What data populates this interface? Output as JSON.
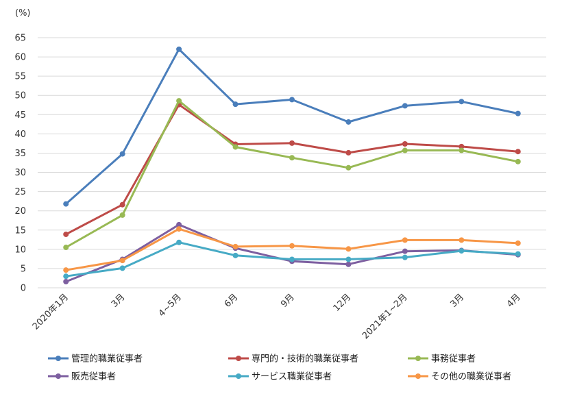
{
  "chart_data": {
    "type": "line",
    "unit_label": "(%)",
    "ylim": [
      0,
      65
    ],
    "ytick_step": 5,
    "grid": "horizontal",
    "legend_position": "bottom",
    "categories": [
      "2020年1月",
      "3月",
      "4~5月",
      "6月",
      "9月",
      "12月",
      "2021年1~2月",
      "3月",
      "4月"
    ],
    "series": [
      {
        "name": "管理的職業従事者",
        "color": "#4a7ebb",
        "values": [
          21.8,
          34.8,
          62.0,
          47.7,
          48.9,
          43.1,
          47.3,
          48.4,
          45.3
        ]
      },
      {
        "name": "専門的・技術的職業従事者",
        "color": "#be4b48",
        "values": [
          13.9,
          21.6,
          47.6,
          37.3,
          37.6,
          35.1,
          37.4,
          36.7,
          35.4
        ]
      },
      {
        "name": "事務従事者",
        "color": "#98b954",
        "values": [
          10.5,
          18.9,
          48.6,
          36.6,
          33.8,
          31.2,
          35.7,
          35.7,
          32.8
        ]
      },
      {
        "name": "販売従事者",
        "color": "#7d5fa0",
        "values": [
          1.6,
          7.4,
          16.4,
          10.3,
          6.9,
          6.1,
          9.5,
          9.7,
          8.6
        ]
      },
      {
        "name": "サービス職業従事者",
        "color": "#46aac5",
        "values": [
          3.0,
          5.1,
          11.8,
          8.4,
          7.4,
          7.4,
          7.9,
          9.6,
          8.8
        ]
      },
      {
        "name": "その他の職業従事者",
        "color": "#f79646",
        "values": [
          4.6,
          7.1,
          15.3,
          10.7,
          10.9,
          10.1,
          12.4,
          12.4,
          11.6
        ]
      }
    ]
  }
}
